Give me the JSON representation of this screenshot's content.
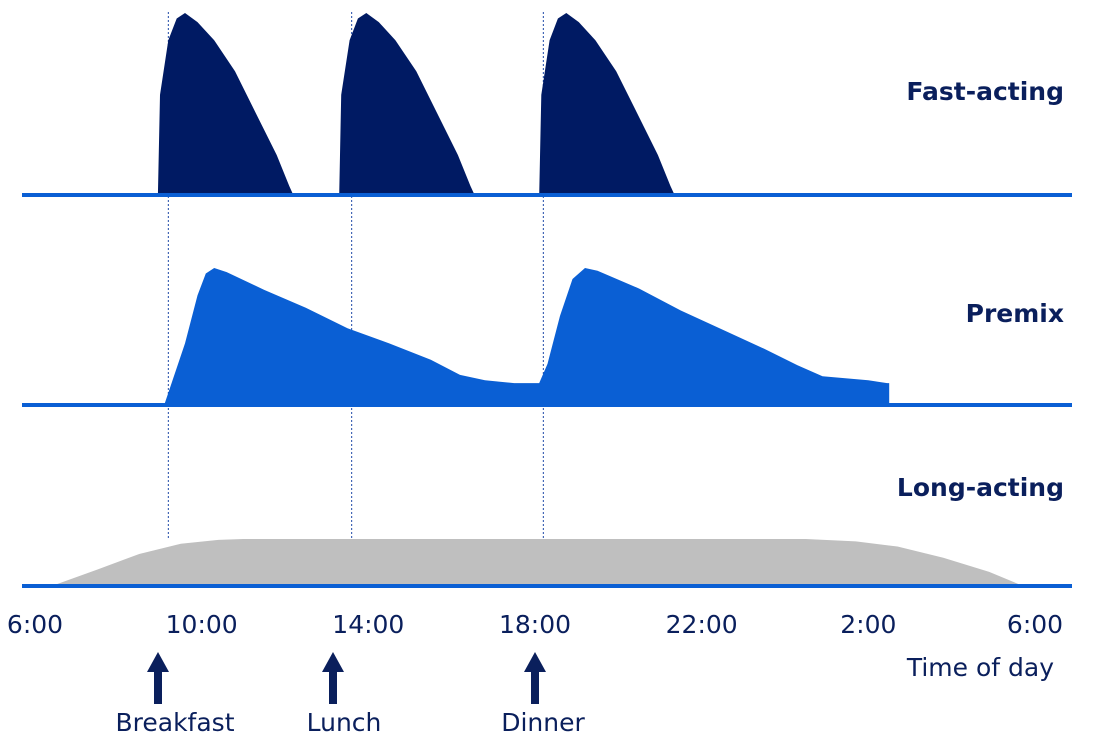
{
  "chart_data": {
    "type": "area",
    "xlabel": "Time of day",
    "x_ticks": [
      "6:00",
      "10:00",
      "14:00",
      "18:00",
      "22:00",
      "2:00",
      "6:00"
    ],
    "x_tick_hours": [
      6,
      10,
      14,
      18,
      22,
      26,
      30
    ],
    "xlim_hours": [
      6,
      30
    ],
    "meals": [
      {
        "name": "Breakfast",
        "hour": 9.2
      },
      {
        "name": "Lunch",
        "hour": 13.6
      },
      {
        "name": "Dinner",
        "hour": 18.2
      }
    ],
    "series": [
      {
        "name": "Fast-acting",
        "color": "#001a63",
        "points": [
          [
            8.95,
            0
          ],
          [
            9.0,
            0.55
          ],
          [
            9.2,
            0.85
          ],
          [
            9.4,
            0.97
          ],
          [
            9.6,
            1.0
          ],
          [
            9.9,
            0.95
          ],
          [
            10.3,
            0.85
          ],
          [
            10.8,
            0.68
          ],
          [
            11.3,
            0.45
          ],
          [
            11.8,
            0.22
          ],
          [
            12.1,
            0.05
          ],
          [
            12.2,
            0
          ]
        ]
      },
      {
        "name": "Fast-acting",
        "color": "#001a63",
        "points": [
          [
            13.3,
            0
          ],
          [
            13.35,
            0.55
          ],
          [
            13.55,
            0.85
          ],
          [
            13.75,
            0.97
          ],
          [
            13.95,
            1.0
          ],
          [
            14.25,
            0.95
          ],
          [
            14.65,
            0.85
          ],
          [
            15.15,
            0.68
          ],
          [
            15.65,
            0.45
          ],
          [
            16.15,
            0.22
          ],
          [
            16.45,
            0.05
          ],
          [
            16.55,
            0
          ]
        ]
      },
      {
        "name": "Fast-acting",
        "color": "#001a63",
        "points": [
          [
            18.1,
            0
          ],
          [
            18.15,
            0.55
          ],
          [
            18.35,
            0.85
          ],
          [
            18.55,
            0.97
          ],
          [
            18.75,
            1.0
          ],
          [
            19.05,
            0.95
          ],
          [
            19.45,
            0.85
          ],
          [
            19.95,
            0.68
          ],
          [
            20.45,
            0.45
          ],
          [
            20.95,
            0.22
          ],
          [
            21.25,
            0.05
          ],
          [
            21.35,
            0
          ]
        ]
      },
      {
        "name": "Premix",
        "color": "#0a5fd4",
        "points": [
          [
            9.1,
            0
          ],
          [
            9.6,
            0.45
          ],
          [
            9.9,
            0.8
          ],
          [
            10.1,
            0.96
          ],
          [
            10.3,
            1.0
          ],
          [
            10.6,
            0.97
          ],
          [
            11.5,
            0.84
          ],
          [
            12.5,
            0.71
          ],
          [
            13.5,
            0.56
          ],
          [
            14.5,
            0.45
          ],
          [
            15.5,
            0.33
          ],
          [
            16.2,
            0.22
          ],
          [
            16.8,
            0.18
          ],
          [
            17.5,
            0.16
          ],
          [
            18.1,
            0.16
          ],
          [
            18.3,
            0.3
          ],
          [
            18.6,
            0.65
          ],
          [
            18.9,
            0.92
          ],
          [
            19.2,
            1.0
          ],
          [
            19.5,
            0.98
          ],
          [
            20.5,
            0.85
          ],
          [
            21.5,
            0.69
          ],
          [
            22.5,
            0.55
          ],
          [
            23.5,
            0.41
          ],
          [
            24.3,
            0.29
          ],
          [
            24.9,
            0.21
          ],
          [
            26.0,
            0.18
          ],
          [
            26.45,
            0.16
          ],
          [
            26.5,
            0.16
          ],
          [
            26.5,
            0
          ]
        ]
      },
      {
        "name": "Long-acting",
        "color": "#bfbfbf",
        "points": [
          [
            6.4,
            0
          ],
          [
            7.5,
            0.35
          ],
          [
            8.5,
            0.68
          ],
          [
            9.5,
            0.9
          ],
          [
            10.4,
            0.98
          ],
          [
            11.0,
            1.0
          ],
          [
            17.0,
            1.0
          ],
          [
            22.0,
            1.0
          ],
          [
            24.5,
            1.0
          ],
          [
            25.7,
            0.95
          ],
          [
            26.7,
            0.84
          ],
          [
            27.8,
            0.6
          ],
          [
            28.9,
            0.3
          ],
          [
            29.5,
            0.08
          ],
          [
            29.7,
            0
          ]
        ]
      }
    ],
    "colors": {
      "baseline": "#0a5fd4",
      "label": "#0a1f5c",
      "arrow": "#0a1f5c",
      "meal_line": "#1f4aa8"
    }
  }
}
